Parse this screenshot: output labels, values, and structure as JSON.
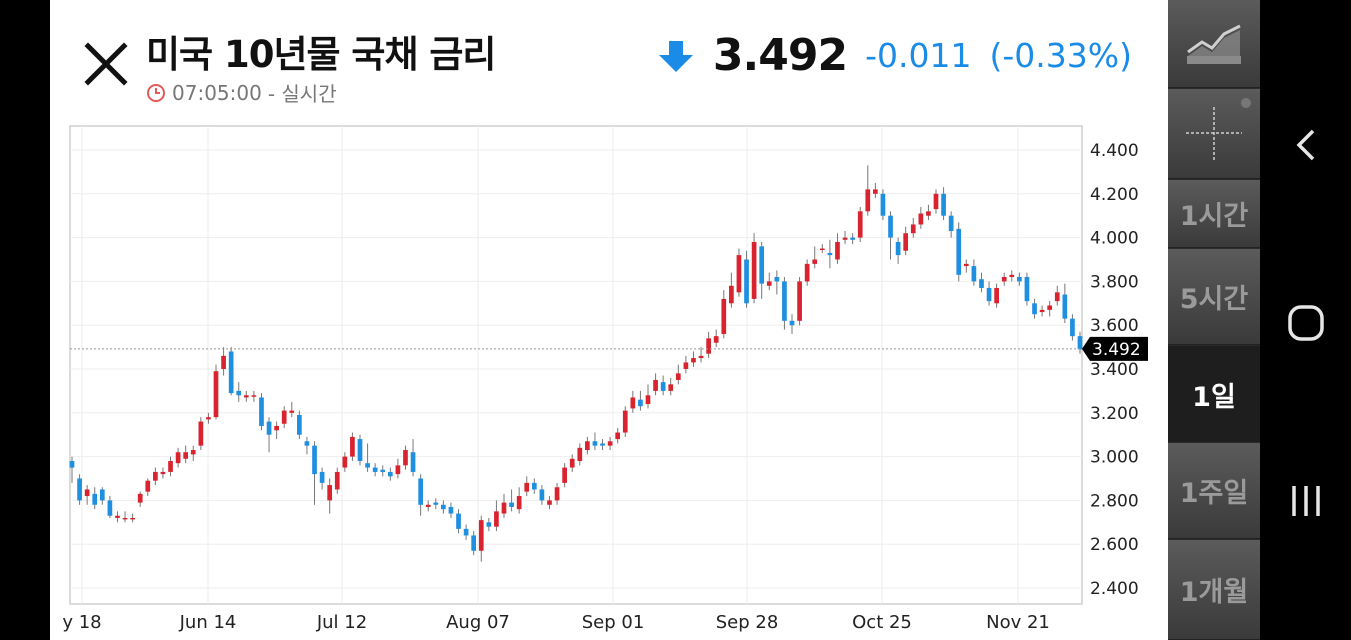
{
  "header": {
    "title": "미국 10년물 국채 금리",
    "time": "07:05:00",
    "realtime": "- 실시간",
    "price": "3.492",
    "change": "-0.011",
    "change_pct": "(-0.33%)",
    "change_color": "#1a8be6"
  },
  "rail": {
    "items": [
      {
        "label": "",
        "icon": "line-chart-icon"
      },
      {
        "label": "",
        "icon": "crosshair-icon"
      },
      {
        "label": "1시간"
      },
      {
        "label": "5시간"
      },
      {
        "label": "1일",
        "selected": true
      },
      {
        "label": "1주일"
      },
      {
        "label": "1개월"
      }
    ]
  },
  "nav": {
    "back": "back-icon",
    "home": "home-icon",
    "recents": "recents-icon"
  },
  "chart_data": {
    "type": "candlestick",
    "ylim": [
      2.35,
      4.5
    ],
    "yticks": [
      "4.400",
      "4.200",
      "4.000",
      "3.800",
      "3.600",
      "3.400",
      "3.200",
      "3.000",
      "2.800",
      "2.600",
      "2.400"
    ],
    "xticks": [
      "y 18",
      "Jun 14",
      "Jul 12",
      "Aug 07",
      "Sep 01",
      "Sep 28",
      "Oct 25",
      "Nov 21"
    ],
    "last_value": "3.492",
    "up_color": "#d9232e",
    "down_color": "#1f8fe0",
    "candles": [
      [
        2.98,
        2.95,
        2.88,
        3.0
      ],
      [
        2.9,
        2.8,
        2.78,
        2.92
      ],
      [
        2.82,
        2.85,
        2.78,
        2.87
      ],
      [
        2.83,
        2.78,
        2.76,
        2.86
      ],
      [
        2.85,
        2.8,
        2.78,
        2.86
      ],
      [
        2.8,
        2.73,
        2.72,
        2.82
      ],
      [
        2.72,
        2.73,
        2.7,
        2.75
      ],
      [
        2.72,
        2.72,
        2.7,
        2.75
      ],
      [
        2.72,
        2.72,
        2.7,
        2.74
      ],
      [
        2.79,
        2.83,
        2.77,
        2.84
      ],
      [
        2.84,
        2.89,
        2.82,
        2.9
      ],
      [
        2.89,
        2.93,
        2.87,
        2.95
      ],
      [
        2.92,
        2.93,
        2.9,
        2.95
      ],
      [
        2.93,
        2.98,
        2.91,
        3.0
      ],
      [
        2.97,
        3.02,
        2.95,
        3.04
      ],
      [
        2.99,
        3.02,
        2.97,
        3.05
      ],
      [
        3.01,
        3.03,
        2.98,
        3.05
      ],
      [
        3.05,
        3.16,
        3.03,
        3.18
      ],
      [
        3.17,
        3.18,
        3.15,
        3.2
      ],
      [
        3.18,
        3.39,
        3.17,
        3.42
      ],
      [
        3.4,
        3.46,
        3.37,
        3.5
      ],
      [
        3.48,
        3.29,
        3.28,
        3.5
      ],
      [
        3.3,
        3.28,
        3.25,
        3.34
      ],
      [
        3.27,
        3.28,
        3.25,
        3.3
      ],
      [
        3.28,
        3.28,
        3.25,
        3.3
      ],
      [
        3.27,
        3.14,
        3.12,
        3.29
      ],
      [
        3.16,
        3.1,
        3.02,
        3.18
      ],
      [
        3.12,
        3.14,
        3.08,
        3.16
      ],
      [
        3.15,
        3.21,
        3.13,
        3.23
      ],
      [
        3.2,
        3.21,
        3.18,
        3.25
      ],
      [
        3.19,
        3.1,
        3.08,
        3.21
      ],
      [
        3.07,
        3.05,
        3.01,
        3.09
      ],
      [
        3.05,
        2.92,
        2.78,
        3.07
      ],
      [
        2.93,
        2.88,
        2.85,
        2.95
      ],
      [
        2.8,
        2.87,
        2.74,
        2.9
      ],
      [
        2.85,
        2.93,
        2.83,
        2.95
      ],
      [
        2.95,
        3.0,
        2.93,
        3.02
      ],
      [
        3.0,
        3.09,
        2.98,
        3.11
      ],
      [
        3.08,
        2.98,
        2.96,
        3.1
      ],
      [
        2.97,
        2.95,
        2.93,
        3.06
      ],
      [
        2.95,
        2.93,
        2.91,
        2.97
      ],
      [
        2.94,
        2.93,
        2.91,
        2.96
      ],
      [
        2.93,
        2.91,
        2.89,
        2.95
      ],
      [
        2.92,
        2.96,
        2.9,
        2.99
      ],
      [
        2.96,
        3.03,
        2.94,
        3.05
      ],
      [
        3.02,
        2.93,
        2.91,
        3.08
      ],
      [
        2.9,
        2.78,
        2.73,
        2.92
      ],
      [
        2.77,
        2.78,
        2.75,
        2.8
      ],
      [
        2.79,
        2.78,
        2.76,
        2.81
      ],
      [
        2.78,
        2.76,
        2.74,
        2.8
      ],
      [
        2.77,
        2.74,
        2.72,
        2.79
      ],
      [
        2.74,
        2.67,
        2.65,
        2.76
      ],
      [
        2.67,
        2.64,
        2.62,
        2.69
      ],
      [
        2.64,
        2.57,
        2.55,
        2.66
      ],
      [
        2.57,
        2.71,
        2.52,
        2.73
      ],
      [
        2.7,
        2.68,
        2.66,
        2.72
      ],
      [
        2.68,
        2.75,
        2.66,
        2.8
      ],
      [
        2.74,
        2.79,
        2.72,
        2.83
      ],
      [
        2.79,
        2.77,
        2.75,
        2.85
      ],
      [
        2.76,
        2.82,
        2.74,
        2.86
      ],
      [
        2.84,
        2.88,
        2.82,
        2.91
      ],
      [
        2.88,
        2.85,
        2.83,
        2.9
      ],
      [
        2.85,
        2.8,
        2.78,
        2.87
      ],
      [
        2.78,
        2.8,
        2.76,
        2.82
      ],
      [
        2.8,
        2.86,
        2.78,
        2.88
      ],
      [
        2.88,
        2.95,
        2.86,
        2.97
      ],
      [
        2.95,
        2.99,
        2.93,
        3.01
      ],
      [
        2.98,
        3.04,
        2.96,
        3.06
      ],
      [
        3.03,
        3.07,
        3.01,
        3.09
      ],
      [
        3.07,
        3.05,
        3.03,
        3.11
      ],
      [
        3.06,
        3.05,
        3.03,
        3.08
      ],
      [
        3.05,
        3.07,
        3.03,
        3.09
      ],
      [
        3.08,
        3.11,
        3.06,
        3.13
      ],
      [
        3.11,
        3.21,
        3.09,
        3.23
      ],
      [
        3.22,
        3.27,
        3.2,
        3.3
      ],
      [
        3.26,
        3.23,
        3.21,
        3.3
      ],
      [
        3.24,
        3.28,
        3.22,
        3.33
      ],
      [
        3.3,
        3.35,
        3.28,
        3.38
      ],
      [
        3.34,
        3.3,
        3.28,
        3.37
      ],
      [
        3.3,
        3.33,
        3.28,
        3.36
      ],
      [
        3.35,
        3.38,
        3.33,
        3.42
      ],
      [
        3.4,
        3.43,
        3.38,
        3.46
      ],
      [
        3.43,
        3.45,
        3.41,
        3.48
      ],
      [
        3.45,
        3.46,
        3.43,
        3.5
      ],
      [
        3.47,
        3.54,
        3.45,
        3.57
      ],
      [
        3.52,
        3.55,
        3.5,
        3.58
      ],
      [
        3.56,
        3.72,
        3.54,
        3.76
      ],
      [
        3.7,
        3.78,
        3.68,
        3.84
      ],
      [
        3.75,
        3.92,
        3.73,
        3.95
      ],
      [
        3.9,
        3.7,
        3.68,
        3.94
      ],
      [
        3.72,
        3.98,
        3.7,
        4.02
      ],
      [
        3.96,
        3.79,
        3.72,
        3.98
      ],
      [
        3.78,
        3.8,
        3.76,
        3.84
      ],
      [
        3.82,
        3.8,
        3.74,
        3.85
      ],
      [
        3.8,
        3.62,
        3.58,
        3.82
      ],
      [
        3.62,
        3.6,
        3.56,
        3.65
      ],
      [
        3.62,
        3.8,
        3.6,
        3.82
      ],
      [
        3.8,
        3.88,
        3.78,
        3.9
      ],
      [
        3.88,
        3.9,
        3.86,
        3.96
      ],
      [
        3.95,
        3.95,
        3.93,
        3.97
      ],
      [
        3.93,
        3.92,
        3.86,
        3.99
      ],
      [
        3.9,
        3.98,
        3.88,
        4.02
      ],
      [
        3.99,
        4.0,
        3.97,
        4.03
      ],
      [
        4.0,
        3.99,
        3.97,
        4.02
      ],
      [
        4.0,
        4.12,
        3.98,
        4.14
      ],
      [
        4.12,
        4.22,
        4.1,
        4.33
      ],
      [
        4.2,
        4.22,
        4.18,
        4.25
      ],
      [
        4.2,
        4.1,
        4.08,
        4.22
      ],
      [
        4.1,
        4.0,
        3.9,
        4.12
      ],
      [
        3.98,
        3.92,
        3.88,
        4.0
      ],
      [
        3.94,
        4.02,
        3.92,
        4.05
      ],
      [
        4.02,
        4.06,
        4.0,
        4.09
      ],
      [
        4.06,
        4.11,
        4.04,
        4.14
      ],
      [
        4.1,
        4.12,
        4.08,
        4.15
      ],
      [
        4.13,
        4.2,
        4.11,
        4.22
      ],
      [
        4.2,
        4.1,
        4.08,
        4.23
      ],
      [
        4.1,
        4.03,
        4.0,
        4.12
      ],
      [
        4.04,
        3.83,
        3.8,
        4.07
      ],
      [
        3.87,
        3.88,
        3.84,
        3.9
      ],
      [
        3.87,
        3.8,
        3.78,
        3.9
      ],
      [
        3.81,
        3.77,
        3.75,
        3.84
      ],
      [
        3.77,
        3.71,
        3.69,
        3.8
      ],
      [
        3.7,
        3.77,
        3.68,
        3.79
      ],
      [
        3.8,
        3.82,
        3.78,
        3.84
      ],
      [
        3.82,
        3.83,
        3.8,
        3.85
      ],
      [
        3.82,
        3.8,
        3.78,
        3.84
      ],
      [
        3.82,
        3.71,
        3.69,
        3.84
      ],
      [
        3.7,
        3.65,
        3.63,
        3.72
      ],
      [
        3.66,
        3.67,
        3.64,
        3.69
      ],
      [
        3.67,
        3.69,
        3.64,
        3.71
      ],
      [
        3.71,
        3.75,
        3.69,
        3.78
      ],
      [
        3.74,
        3.63,
        3.61,
        3.79
      ],
      [
        3.63,
        3.55,
        3.53,
        3.65
      ],
      [
        3.55,
        3.49,
        3.47,
        3.57
      ]
    ]
  }
}
